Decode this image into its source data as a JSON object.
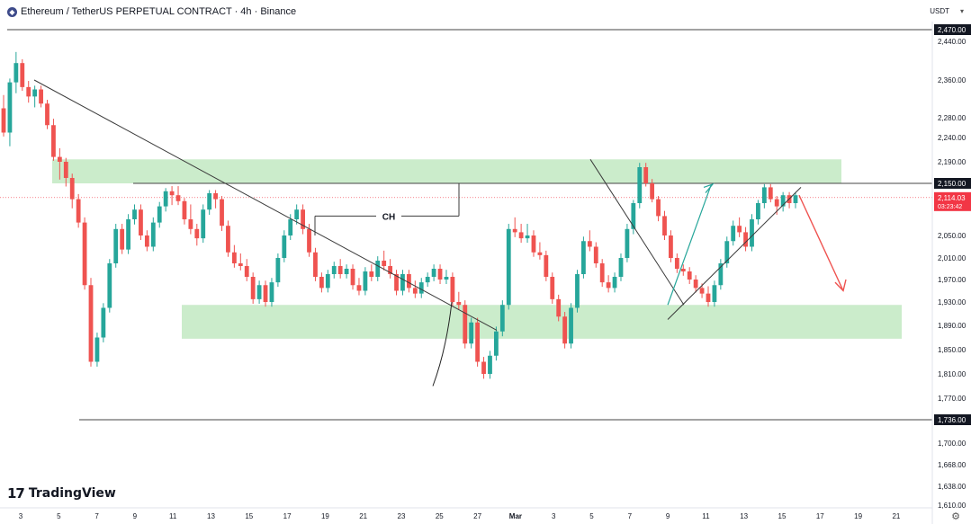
{
  "header": {
    "symbol_icon": "ethereum-icon",
    "title": "Ethereum / TetherUS PERPETUAL CONTRACT · 4h · Binance",
    "currency": "USDT"
  },
  "branding": {
    "logo_mark": "17",
    "name": "TradingView"
  },
  "colors": {
    "up": "#26a69a",
    "down": "#ef5350",
    "zone": "#b9e6b9",
    "line": "#3b3b3b",
    "price_tag": "#f23645"
  },
  "chart_data": {
    "type": "candlestick",
    "ylim": [
      1600,
      2480
    ],
    "y_ticks": [
      2440,
      2360,
      2280,
      2240,
      2190,
      2150,
      2100,
      2050,
      2010,
      1970,
      1930,
      1890,
      1850,
      1810,
      1770,
      1700,
      1668,
      1638,
      1610
    ],
    "y_tick_labels": [
      "2,440.00",
      "2,360.00",
      "2,280.00",
      "2,240.00",
      "2,190.00",
      "2,150.00",
      "2,100.00",
      "2,050.00",
      "2,010.00",
      "1,970.00",
      "1,930.00",
      "1,890.00",
      "1,850.00",
      "1,810.00",
      "1,770.00",
      "1,700.00",
      "1,668.00",
      "1,638.00",
      "1,610.00"
    ],
    "x_tick_labels": [
      "3",
      "5",
      "7",
      "9",
      "11",
      "13",
      "15",
      "17",
      "19",
      "21",
      "23",
      "25",
      "27",
      "Mar",
      "3",
      "5",
      "7",
      "9",
      "11",
      "13",
      "15",
      "17",
      "19",
      "21"
    ],
    "horizontal_levels": [
      {
        "price": 2470,
        "label": "2,470.00"
      },
      {
        "price": 2150,
        "label": "2,150.00"
      },
      {
        "price": 1736,
        "label": "1,736.00"
      }
    ],
    "current_price": {
      "price": 2114.03,
      "label": "2,114.03",
      "countdown": "03:23:42"
    },
    "zones": [
      {
        "name": "resistance",
        "from": 2150,
        "to": 2195
      },
      {
        "name": "support",
        "from": 1868,
        "to": 1925
      }
    ],
    "annotations": [
      {
        "text": "CH",
        "price": 2080
      }
    ],
    "candles": [
      [
        2300,
        2320,
        2275,
        2250
      ],
      [
        2250,
        2300,
        2230,
        2355
      ],
      [
        2355,
        2410,
        2340,
        2395
      ],
      [
        2395,
        2395,
        2380,
        2345
      ],
      [
        2345,
        2350,
        2320,
        2325
      ],
      [
        2325,
        2330,
        2310,
        2340
      ],
      [
        2340,
        2335,
        2315,
        2310
      ],
      [
        2310,
        2290,
        2270,
        2265
      ],
      [
        2265,
        2270,
        2245,
        2200
      ],
      [
        2200,
        2210,
        2165,
        2190
      ],
      [
        2190,
        2180,
        2150,
        2160
      ],
      [
        2160,
        2140,
        2100,
        2110
      ],
      [
        2110,
        2115,
        2080,
        2070
      ],
      [
        2070,
        2070,
        1990,
        1960
      ],
      [
        1960,
        1965,
        1840,
        1830
      ],
      [
        1830,
        1850,
        1840,
        1870
      ],
      [
        1870,
        1920,
        1905,
        1920
      ],
      [
        1920,
        1985,
        1975,
        2000
      ],
      [
        2000,
        2050,
        2040,
        2060
      ],
      [
        2060,
        2055,
        2030,
        2025
      ],
      [
        2025,
        2060,
        2045,
        2075
      ],
      [
        2075,
        2090,
        2085,
        2090
      ],
      [
        2090,
        2070,
        2060,
        2050
      ],
      [
        2050,
        2050,
        2030,
        2030
      ],
      [
        2030,
        2050,
        2040,
        2070
      ],
      [
        2070,
        2090,
        2085,
        2095
      ],
      [
        2095,
        2120,
        2115,
        2130
      ],
      [
        2130,
        2135,
        2105,
        2120
      ],
      [
        2120,
        2135,
        2120,
        2105
      ],
      [
        2105,
        2105,
        2085,
        2075
      ],
      [
        2075,
        2090,
        2065,
        2060
      ],
      [
        2060,
        2055,
        2040,
        2045
      ],
      [
        2045,
        2075,
        2070,
        2090
      ],
      [
        2090,
        2095,
        2110,
        2125
      ],
      [
        2125,
        2120,
        2100,
        2110
      ],
      [
        2110,
        2105,
        2080,
        2065
      ],
      [
        2065,
        2030,
        2030,
        2020
      ],
      [
        2020,
        2025,
        2010,
        2000
      ],
      [
        2000,
        2010,
        2005,
        1995
      ],
      [
        1995,
        2000,
        1985,
        1975
      ],
      [
        1975,
        1960,
        1945,
        1935
      ],
      [
        1935,
        1945,
        1965,
        1960
      ],
      [
        1960,
        1950,
        1940,
        1930
      ],
      [
        1930,
        1945,
        1945,
        1965
      ],
      [
        1965,
        1990,
        1990,
        2010
      ],
      [
        2010,
        2030,
        2030,
        2050
      ],
      [
        2050,
        2065,
        2070,
        2075
      ],
      [
        2075,
        2090,
        2095,
        2090
      ],
      [
        2090,
        2090,
        2065,
        2060
      ],
      [
        2060,
        2050,
        2040,
        2020
      ],
      [
        2020,
        2000,
        1990,
        1975
      ],
      [
        1975,
        1970,
        1960,
        1955
      ],
      [
        1955,
        1970,
        1965,
        1980
      ],
      [
        1980,
        1990,
        1990,
        1995
      ],
      [
        1995,
        2000,
        1985,
        1980
      ],
      [
        1980,
        1990,
        1995,
        1990
      ],
      [
        1990,
        1980,
        1970,
        1960
      ],
      [
        1960,
        1965,
        1960,
        1950
      ],
      [
        1950,
        1975,
        1975,
        1985
      ],
      [
        1985,
        1990,
        1980,
        1975
      ],
      [
        1975,
        1995,
        2000,
        2005
      ],
      [
        2005,
        2015,
        2005,
        1995
      ],
      [
        1995,
        2000,
        1990,
        1980
      ],
      [
        1980,
        1970,
        1960,
        1950
      ],
      [
        1950,
        1960,
        1970,
        1980
      ],
      [
        1980,
        1975,
        1960,
        1955
      ],
      [
        1955,
        1960,
        1955,
        1945
      ],
      [
        1945,
        1960,
        1960,
        1965
      ],
      [
        1965,
        1970,
        1970,
        1975
      ],
      [
        1975,
        1985,
        1980,
        1990
      ],
      [
        1990,
        1985,
        1975,
        1970
      ],
      [
        1970,
        1980,
        1985,
        1975
      ],
      [
        1975,
        1960,
        1940,
        1930
      ],
      [
        1930,
        1940,
        1930,
        1925
      ],
      [
        1925,
        1900,
        1880,
        1860
      ],
      [
        1860,
        1870,
        1890,
        1895
      ],
      [
        1895,
        1870,
        1845,
        1830
      ],
      [
        1830,
        1825,
        1815,
        1810
      ],
      [
        1810,
        1830,
        1835,
        1840
      ],
      [
        1840,
        1860,
        1870,
        1880
      ],
      [
        1880,
        1905,
        1915,
        1925
      ],
      [
        1925,
        1980,
        2020,
        2060
      ],
      [
        2060,
        2070,
        2065,
        2055
      ],
      [
        2055,
        2060,
        2050,
        2045
      ],
      [
        2045,
        2060,
        2055,
        2050
      ],
      [
        2050,
        2040,
        2030,
        2020
      ],
      [
        2020,
        2030,
        2025,
        2015
      ],
      [
        2015,
        2000,
        1990,
        1975
      ],
      [
        1975,
        1965,
        1955,
        1935
      ],
      [
        1935,
        1935,
        1925,
        1905
      ],
      [
        1905,
        1880,
        1870,
        1860
      ],
      [
        1860,
        1890,
        1905,
        1920
      ],
      [
        1920,
        1950,
        1965,
        1980
      ],
      [
        1980,
        2010,
        2025,
        2040
      ],
      [
        2040,
        2050,
        2040,
        2030
      ],
      [
        2030,
        2020,
        2010,
        2000
      ],
      [
        2000,
        1990,
        1975,
        1965
      ],
      [
        1965,
        1970,
        1965,
        1955
      ],
      [
        1955,
        1960,
        1965,
        1975
      ],
      [
        1975,
        1990,
        2000,
        2010
      ],
      [
        2010,
        2030,
        2045,
        2060
      ],
      [
        2060,
        2080,
        2090,
        2100
      ],
      [
        2100,
        2120,
        2150,
        2180
      ],
      [
        2180,
        2175,
        2160,
        2150
      ],
      [
        2150,
        2140,
        2125,
        2110
      ],
      [
        2110,
        2105,
        2090,
        2080
      ],
      [
        2080,
        2070,
        2060,
        2050
      ],
      [
        2050,
        2040,
        2025,
        2010
      ],
      [
        2010,
        2000,
        1995,
        1990
      ],
      [
        1990,
        1985,
        1985,
        1985
      ],
      [
        1985,
        1980,
        1975,
        1970
      ],
      [
        1970,
        1965,
        1960,
        1955
      ],
      [
        1955,
        1950,
        1945,
        1945
      ],
      [
        1945,
        1950,
        1940,
        1930
      ],
      [
        1930,
        1940,
        1950,
        1960
      ],
      [
        1960,
        1980,
        1990,
        2000
      ],
      [
        2000,
        2020,
        2030,
        2040
      ],
      [
        2040,
        2050,
        2060,
        2065
      ],
      [
        2065,
        2070,
        2060,
        2055
      ],
      [
        2055,
        2045,
        2035,
        2030
      ],
      [
        2030,
        2050,
        2065,
        2075
      ],
      [
        2075,
        2085,
        2095,
        2100
      ],
      [
        2100,
        2120,
        2130,
        2140
      ],
      [
        2140,
        2120,
        2115,
        2110
      ],
      [
        2110,
        2100,
        2090,
        2095
      ],
      [
        2095,
        2110,
        2115,
        2120
      ],
      [
        2120,
        2110,
        2105,
        2100
      ],
      [
        2100,
        2110,
        2115,
        2120
      ]
    ]
  }
}
